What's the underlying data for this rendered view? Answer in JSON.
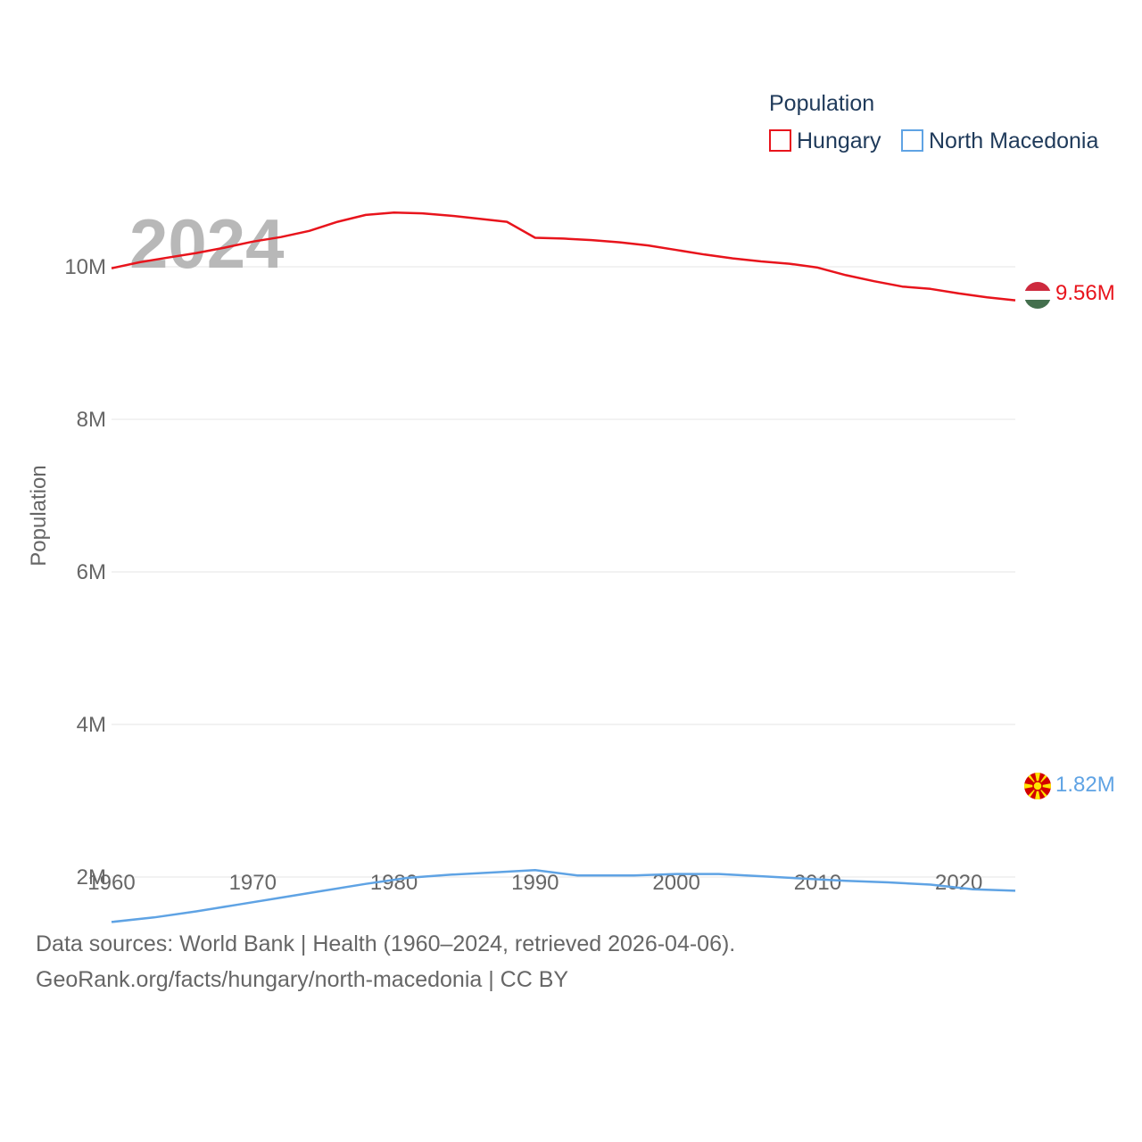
{
  "chart_data": {
    "type": "line",
    "title": "",
    "year_overlay": "2024",
    "ylabel": "Population",
    "xlabel": "",
    "ylim": [
      0,
      11500000
    ],
    "xlim": [
      1960,
      2024
    ],
    "yticks": [
      {
        "value": 2000000,
        "label": "2M"
      },
      {
        "value": 4000000,
        "label": "4M"
      },
      {
        "value": 6000000,
        "label": "6M"
      },
      {
        "value": 8000000,
        "label": "8M"
      },
      {
        "value": 10000000,
        "label": "10M"
      }
    ],
    "xticks": [
      {
        "value": 1960,
        "label": "1960"
      },
      {
        "value": 1970,
        "label": "1970"
      },
      {
        "value": 1980,
        "label": "1980"
      },
      {
        "value": 1990,
        "label": "1990"
      },
      {
        "value": 2000,
        "label": "2000"
      },
      {
        "value": 2010,
        "label": "2010"
      },
      {
        "value": 2020,
        "label": "2020"
      }
    ],
    "legend": {
      "title": "Population",
      "position": "top-right"
    },
    "series": [
      {
        "name": "Hungary",
        "color": "#e8141c",
        "end_label": "9.56M",
        "flag": "hungary-flag",
        "x": [
          1960,
          1962,
          1964,
          1966,
          1968,
          1970,
          1972,
          1974,
          1976,
          1978,
          1980,
          1982,
          1984,
          1986,
          1988,
          1990,
          1992,
          1994,
          1996,
          1998,
          2000,
          2002,
          2004,
          2006,
          2008,
          2010,
          2012,
          2014,
          2016,
          2018,
          2020,
          2022,
          2024
        ],
        "values": [
          9980000,
          10060000,
          10120000,
          10180000,
          10250000,
          10330000,
          10390000,
          10470000,
          10590000,
          10680000,
          10710000,
          10700000,
          10670000,
          10630000,
          10590000,
          10380000,
          10370000,
          10350000,
          10320000,
          10280000,
          10220000,
          10160000,
          10110000,
          10070000,
          10040000,
          9990000,
          9890000,
          9810000,
          9740000,
          9710000,
          9650000,
          9600000,
          9560000
        ]
      },
      {
        "name": "North Macedonia",
        "color": "#5fa3e4",
        "end_label": "1.82M",
        "flag": "north-macedonia-flag",
        "x": [
          1960,
          1963,
          1966,
          1969,
          1972,
          1975,
          1978,
          1981,
          1984,
          1987,
          1990,
          1993,
          1995,
          1997,
          2000,
          2003,
          2006,
          2009,
          2012,
          2015,
          2018,
          2021,
          2024
        ],
        "values": [
          1410000,
          1470000,
          1550000,
          1640000,
          1730000,
          1820000,
          1910000,
          1990000,
          2030000,
          2060000,
          2090000,
          2020000,
          2020000,
          2020000,
          2040000,
          2040000,
          2010000,
          1980000,
          1950000,
          1930000,
          1900000,
          1840000,
          1820000
        ]
      }
    ]
  },
  "source": {
    "line1": "Data sources: World Bank | Health (1960–2024, retrieved 2026-04-06).",
    "line2": "GeoRank.org/facts/hungary/north-macedonia | CC BY"
  }
}
